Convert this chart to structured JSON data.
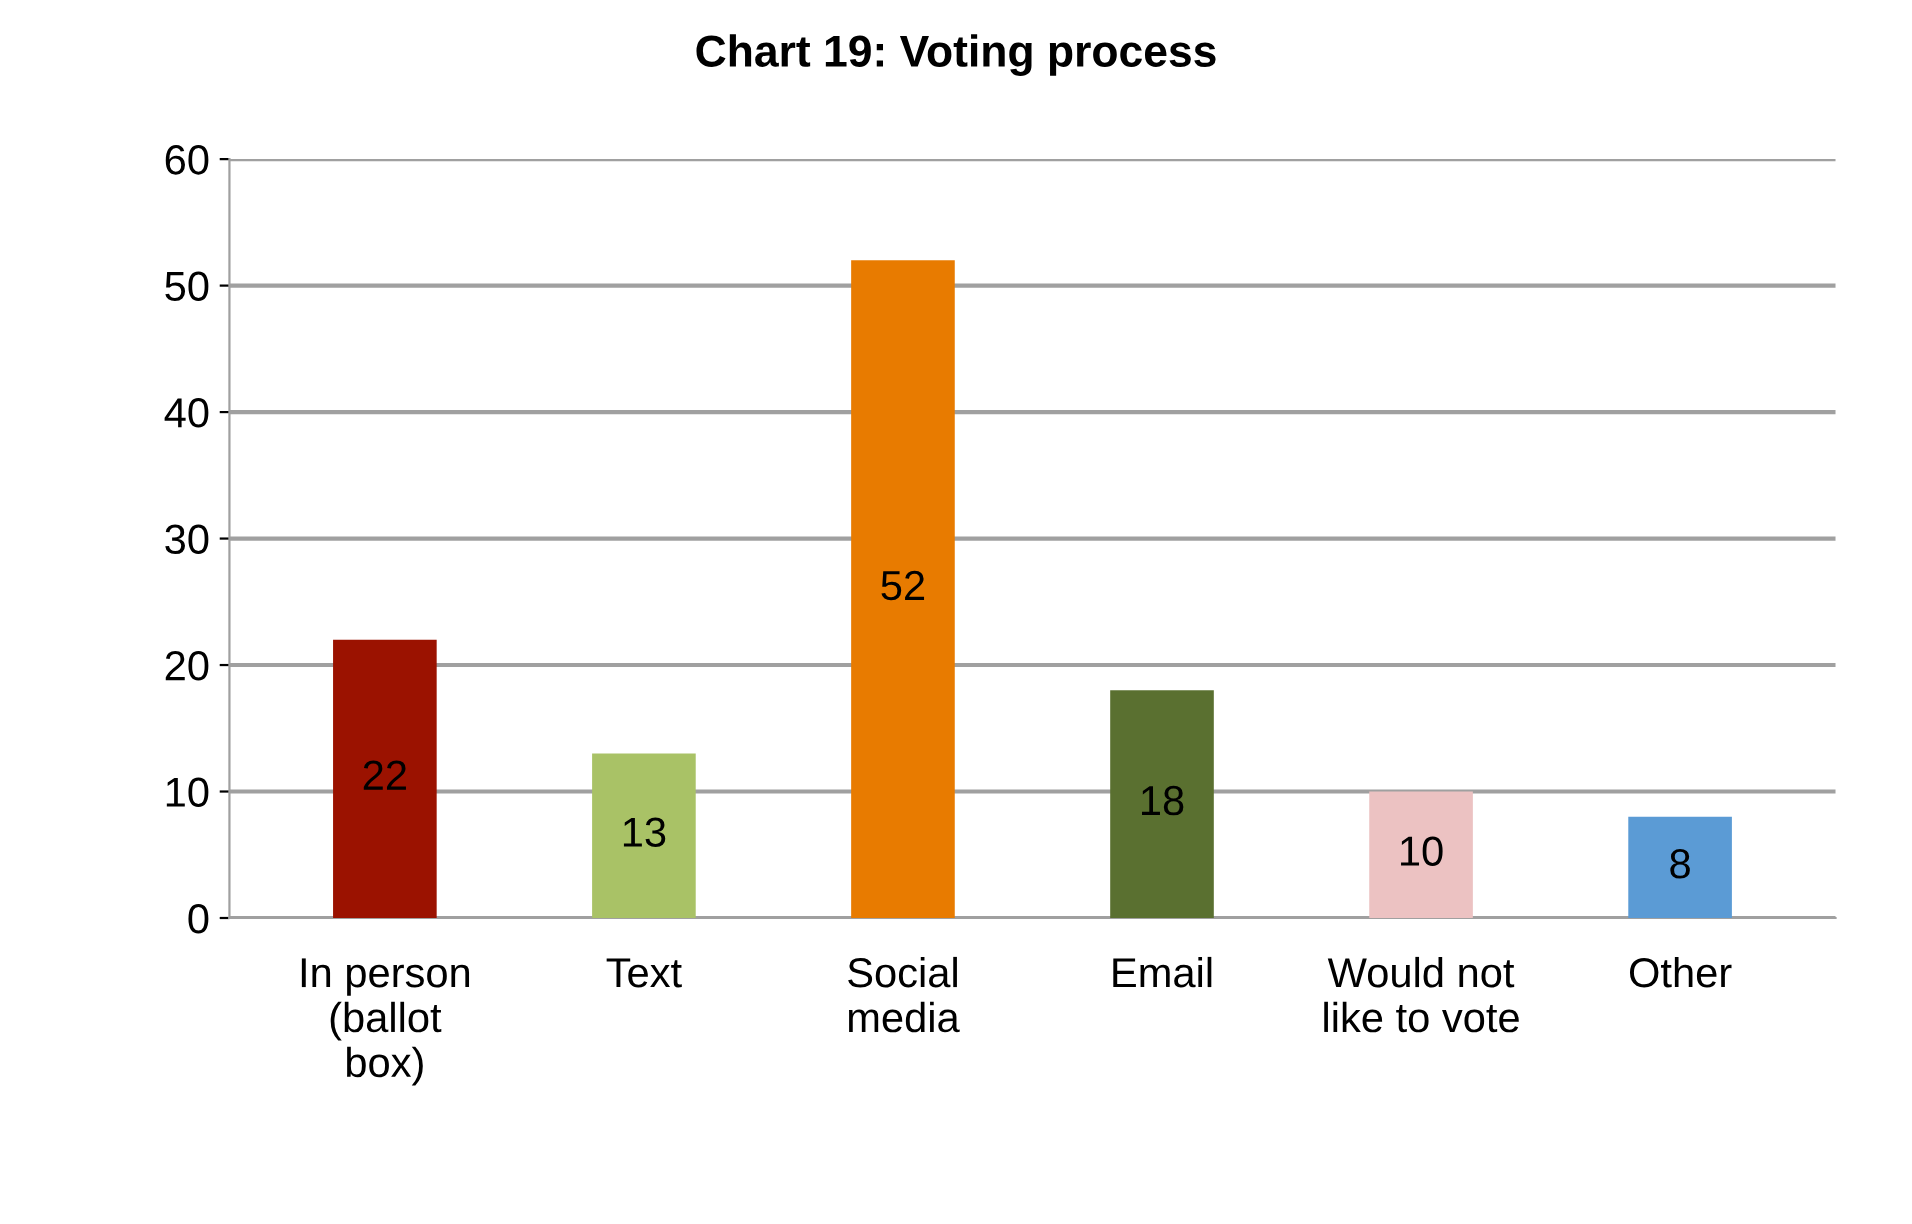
{
  "chart_data": {
    "type": "bar",
    "title": "Chart 19: Voting process",
    "categories": [
      "In person\n(ballot\nbox)",
      "Text",
      "Social\nmedia",
      "Email",
      "Would not\nlike to vote",
      "Other"
    ],
    "values": [
      22,
      13,
      52,
      18,
      10,
      8
    ],
    "colors": [
      "#9b1200",
      "#a9c266",
      "#e87b00",
      "#5a7030",
      "#ecc2c2",
      "#5b9bd5"
    ],
    "ylim": [
      0,
      60
    ],
    "yticks": [
      0,
      10,
      20,
      30,
      40,
      50,
      60
    ],
    "grid": "y",
    "data_labels": true,
    "legend": false
  }
}
